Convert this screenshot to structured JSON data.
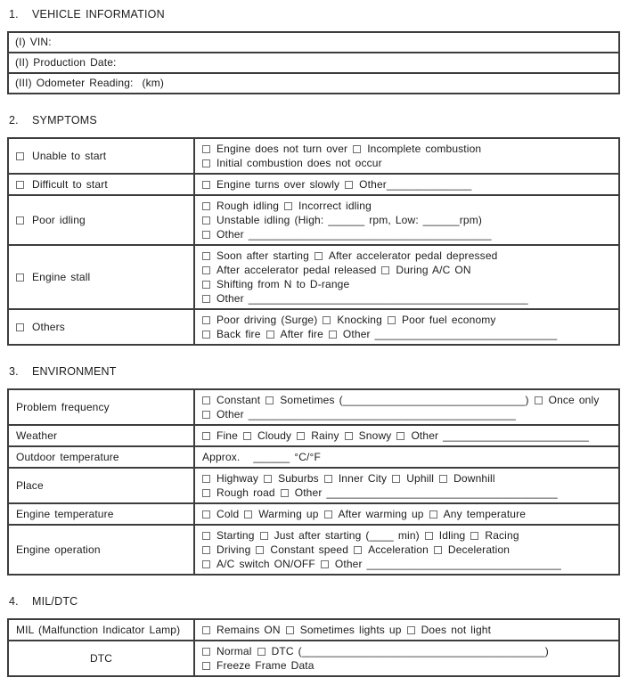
{
  "page": {
    "background": "#ffffff",
    "text_color": "#1c1c1c",
    "border_color": "#3d3d3d",
    "checkbox_border_color": "#6e6e6e"
  },
  "sections": [
    {
      "number": "1.",
      "title": "VEHICLE INFORMATION",
      "rows": [
        {
          "lines": [
            [
              {
                "t": "(I) VIN:"
              }
            ]
          ]
        },
        {
          "lines": [
            [
              {
                "t": "(II) Production Date:"
              }
            ]
          ]
        },
        {
          "lines": [
            [
              {
                "t": "(III) Odometer Reading:  (km)"
              }
            ]
          ]
        }
      ]
    },
    {
      "number": "2.",
      "title": "SYMPTOMS",
      "rows": [
        {
          "label": {
            "cb": true,
            "t": "Unable to start"
          },
          "lines": [
            [
              {
                "cb": true,
                "t": "Engine does not turn over"
              },
              {
                "cb": true,
                "t": "Incomplete combustion"
              }
            ],
            [
              {
                "cb": true,
                "t": "Initial combustion does not occur"
              }
            ]
          ]
        },
        {
          "label": {
            "cb": true,
            "t": "Difficult to start"
          },
          "lines": [
            [
              {
                "cb": true,
                "t": "Engine turns over slowly"
              },
              {
                "cb": true,
                "t": "Other______________"
              }
            ]
          ]
        },
        {
          "label": {
            "cb": true,
            "t": "Poor idling"
          },
          "lines": [
            [
              {
                "cb": true,
                "t": "Rough idling"
              },
              {
                "cb": true,
                "t": "Incorrect idling"
              }
            ],
            [
              {
                "cb": true,
                "t": "Unstable idling (High: ______ rpm, Low: ______rpm)"
              }
            ],
            [
              {
                "cb": true,
                "t": "Other ________________________________________"
              }
            ]
          ]
        },
        {
          "label": {
            "cb": true,
            "t": "Engine stall"
          },
          "lines": [
            [
              {
                "cb": true,
                "t": "Soon after starting"
              },
              {
                "cb": true,
                "t": "After accelerator pedal depressed"
              }
            ],
            [
              {
                "cb": true,
                "t": "After accelerator pedal released"
              },
              {
                "cb": true,
                "t": "During A/C ON"
              }
            ],
            [
              {
                "cb": true,
                "t": "Shifting from N to D-range"
              }
            ],
            [
              {
                "cb": true,
                "t": "Other ______________________________________________"
              }
            ]
          ]
        },
        {
          "label": {
            "cb": true,
            "t": "Others"
          },
          "lines": [
            [
              {
                "cb": true,
                "t": "Poor driving (Surge)"
              },
              {
                "cb": true,
                "t": "Knocking"
              },
              {
                "cb": true,
                "t": "Poor fuel economy"
              }
            ],
            [
              {
                "cb": true,
                "t": "Back fire"
              },
              {
                "cb": true,
                "t": "After fire"
              },
              {
                "cb": true,
                "t": "Other ______________________________"
              }
            ]
          ]
        }
      ]
    },
    {
      "number": "3.",
      "title": "ENVIRONMENT",
      "rows": [
        {
          "label": {
            "t": "Problem frequency"
          },
          "lines": [
            [
              {
                "cb": true,
                "t": "Constant"
              },
              {
                "cb": true,
                "t": "Sometimes (______________________________)"
              },
              {
                "cb": true,
                "t": "Once only"
              }
            ],
            [
              {
                "cb": true,
                "t": "Other ____________________________________________"
              }
            ]
          ]
        },
        {
          "label": {
            "t": "Weather"
          },
          "lines": [
            [
              {
                "cb": true,
                "t": "Fine"
              },
              {
                "cb": true,
                "t": "Cloudy"
              },
              {
                "cb": true,
                "t": "Rainy"
              },
              {
                "cb": true,
                "t": "Snowy"
              },
              {
                "cb": true,
                "t": "Other ________________________"
              }
            ]
          ]
        },
        {
          "label": {
            "t": "Outdoor temperature"
          },
          "lines": [
            [
              {
                "t": "Approx.   ______ °C/°F"
              }
            ]
          ]
        },
        {
          "label": {
            "t": "Place"
          },
          "lines": [
            [
              {
                "cb": true,
                "t": "Highway"
              },
              {
                "cb": true,
                "t": "Suburbs"
              },
              {
                "cb": true,
                "t": "Inner City"
              },
              {
                "cb": true,
                "t": "Uphill"
              },
              {
                "cb": true,
                "t": "Downhill"
              }
            ],
            [
              {
                "cb": true,
                "t": "Rough road"
              },
              {
                "cb": true,
                "t": "Other ______________________________________"
              }
            ]
          ]
        },
        {
          "label": {
            "t": "Engine temperature"
          },
          "lines": [
            [
              {
                "cb": true,
                "t": "Cold"
              },
              {
                "cb": true,
                "t": "Warming up"
              },
              {
                "cb": true,
                "t": "After warming up"
              },
              {
                "cb": true,
                "t": "Any temperature"
              }
            ]
          ]
        },
        {
          "label": {
            "t": "Engine operation"
          },
          "lines": [
            [
              {
                "cb": true,
                "t": "Starting"
              },
              {
                "cb": true,
                "t": "Just after starting (____ min)"
              },
              {
                "cb": true,
                "t": "Idling"
              },
              {
                "cb": true,
                "t": "Racing"
              }
            ],
            [
              {
                "cb": true,
                "t": "Driving"
              },
              {
                "cb": true,
                "t": "Constant speed"
              },
              {
                "cb": true,
                "t": "Acceleration"
              },
              {
                "cb": true,
                "t": "Deceleration"
              }
            ],
            [
              {
                "cb": true,
                "t": "A/C switch ON/OFF"
              },
              {
                "cb": true,
                "t": "Other ________________________________"
              }
            ]
          ]
        }
      ]
    },
    {
      "number": "4.",
      "title": "MIL/DTC",
      "rows": [
        {
          "label": {
            "t": "MIL (Malfunction Indicator Lamp)"
          },
          "lines": [
            [
              {
                "cb": true,
                "t": "Remains ON"
              },
              {
                "cb": true,
                "t": "Sometimes lights up"
              },
              {
                "cb": true,
                "t": "Does not light"
              }
            ]
          ]
        },
        {
          "label": {
            "t": "DTC",
            "align": "center"
          },
          "lines": [
            [
              {
                "cb": true,
                "t": "Normal"
              },
              {
                "cb": true,
                "t": "DTC (________________________________________)"
              }
            ],
            [
              {
                "cb": true,
                "t": "Freeze Frame Data"
              }
            ]
          ]
        }
      ]
    }
  ]
}
